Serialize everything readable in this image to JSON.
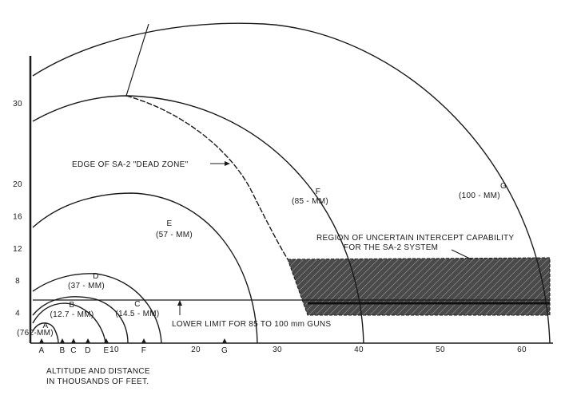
{
  "y_axis": {
    "ticks": [
      4,
      8,
      12,
      16,
      20,
      30
    ]
  },
  "x_axis": {
    "ticks": [
      10,
      20,
      30,
      40,
      50,
      60
    ],
    "caption": [
      "ALTITUDE AND DISTANCE",
      "IN THOUSANDS OF FEET."
    ]
  },
  "range_markers": [
    "A",
    "B",
    "C",
    "D",
    "E",
    "F",
    "G"
  ],
  "arc_labels": [
    {
      "letter": "G",
      "caliber": "(100 - MM)"
    },
    {
      "letter": "F",
      "caliber": "(85 - MM)"
    },
    {
      "letter": "E",
      "caliber": "(57 - MM)"
    },
    {
      "letter": "D",
      "caliber": "(37 - MM)"
    },
    {
      "letter": "C",
      "caliber": "(14.5 - MM)"
    },
    {
      "letter": "B",
      "caliber": "(12.7 - MM)"
    },
    {
      "letter": "A",
      "caliber": "(762-MM)"
    }
  ],
  "annotations": {
    "dead_zone": "EDGE OF SA-2 \"DEAD ZONE\"",
    "region": [
      "REGION OF UNCERTAIN INTERCEPT CAPABILITY",
      "FOR THE SA-2 SYSTEM"
    ],
    "lower_limit": "LOWER LIMIT FOR 85 TO 100 mm GUNS"
  }
}
